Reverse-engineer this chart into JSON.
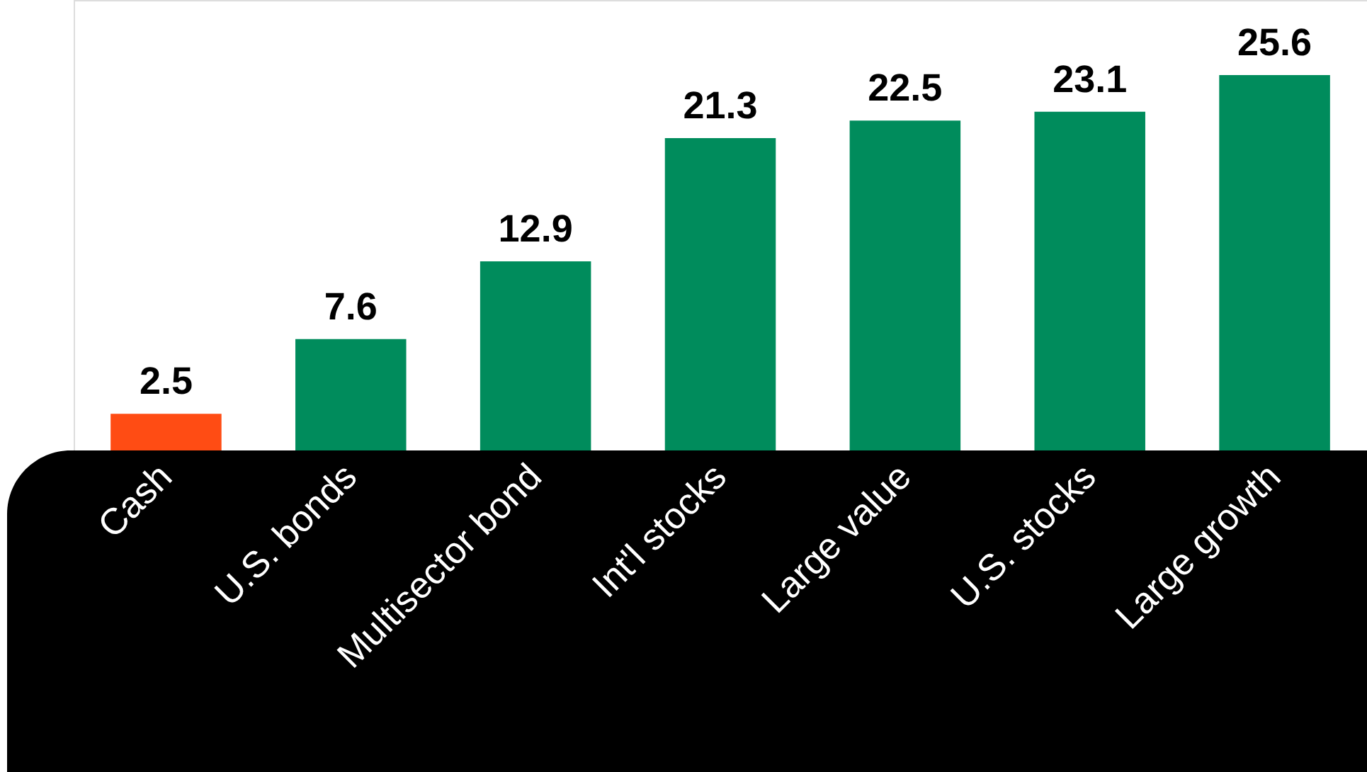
{
  "chart_data": {
    "type": "bar",
    "categories": [
      "Cash",
      "U.S. bonds",
      "Multisector bond",
      "Int'l stocks",
      "Large value",
      "U.S. stocks",
      "Large growth"
    ],
    "values": [
      2.5,
      7.6,
      12.9,
      21.3,
      22.5,
      23.1,
      25.6
    ],
    "colors": [
      "#ff4c14",
      "#008c5c",
      "#008c5c",
      "#008c5c",
      "#008c5c",
      "#008c5c",
      "#008c5c"
    ],
    "data_labels": true
  }
}
